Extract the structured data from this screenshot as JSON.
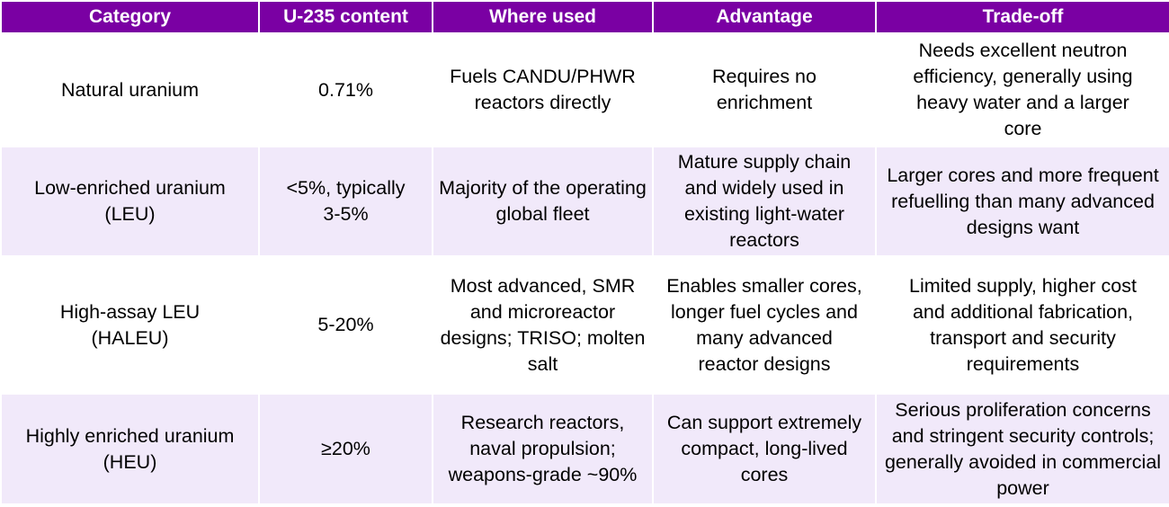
{
  "table": {
    "headers": [
      "Category",
      "U-235 content",
      "Where used",
      "Advantage",
      "Trade-off"
    ],
    "rows": [
      {
        "category": "Natural uranium",
        "u235_content": "0.71%",
        "where_used": "Fuels CANDU/PHWR reactors directly",
        "advantage": "Requires no enrichment",
        "trade_off": "Needs excellent neutron efficiency, generally using heavy water and a larger core"
      },
      {
        "category": "Low-enriched uranium (LEU)",
        "u235_content": "<5%, typically 3-5%",
        "where_used": "Majority of the operating global fleet",
        "advantage": "Mature supply chain and widely used in existing light-water reactors",
        "trade_off": "Larger cores and more frequent refuelling than many advanced designs want"
      },
      {
        "category": "High-assay LEU (HALEU)",
        "u235_content": "5-20%",
        "where_used": "Most advanced, SMR and microreactor designs; TRISO; molten salt",
        "advantage": "Enables smaller cores, longer fuel cycles and many advanced reactor designs",
        "trade_off": "Limited supply, higher cost and additional fabrication, transport and security requirements"
      },
      {
        "category": "Highly enriched uranium (HEU)",
        "u235_content": "≥20%",
        "where_used": "Research reactors, naval propulsion; weapons-grade ~90%",
        "advantage": "Can support extremely compact, long-lived cores",
        "trade_off": "Serious proliferation concerns and stringent security controls; generally avoided in commercial power"
      }
    ]
  },
  "colors": {
    "header_background": "#7a00a3",
    "header_text": "#ffffff",
    "row_tint": "#f1e9fa",
    "row_white": "#ffffff",
    "body_text": "#000000"
  }
}
